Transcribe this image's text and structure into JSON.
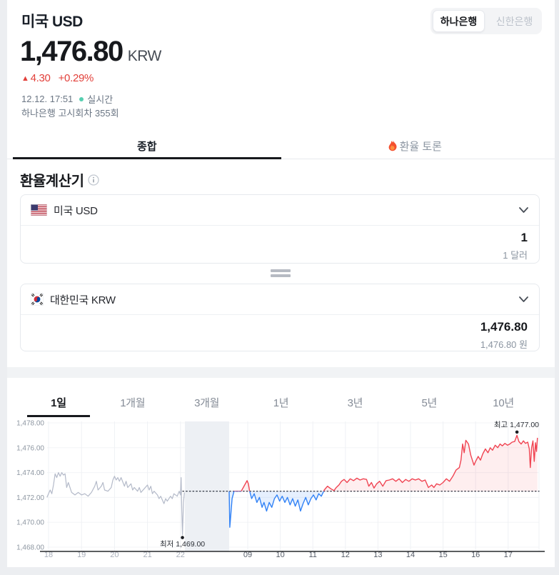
{
  "header": {
    "title": "미국 USD",
    "bank_toggle": {
      "active": "하나은행",
      "inactive": "신한은행"
    },
    "price": "1,476.80",
    "currency_unit": "KRW",
    "change_arrow": "▲",
    "change_value": "4.30",
    "change_percent": "+0.29%",
    "timestamp": "12.12. 17:51",
    "realtime_label": "실시간",
    "notice": "하나은행 고시회차 355회"
  },
  "tabs": {
    "overview": "종합",
    "discussion": "환율 토론"
  },
  "calculator": {
    "heading": "환율계산기",
    "from": {
      "label": "미국 USD",
      "amount": "1",
      "unit_text": "1 달러"
    },
    "to": {
      "label": "대한민국 KRW",
      "amount": "1,476.80",
      "unit_text": "1,476.80 원"
    }
  },
  "chart_tabs": [
    "1일",
    "1개월",
    "3개월",
    "1년",
    "3년",
    "5년",
    "10년"
  ],
  "chart_tabs_active": "1일",
  "chart_data": {
    "type": "line",
    "ylim": [
      1468,
      1478
    ],
    "y_ticks": [
      "1,478.00",
      "1,476.00",
      "1,474.00",
      "1,472.00",
      "1,470.00",
      "1,468.00"
    ],
    "y_tick_values": [
      1478,
      1476,
      1474,
      1472,
      1470,
      1468
    ],
    "x_ticks_prev": {
      "labels": [
        "18",
        "19",
        "20",
        "21",
        "22"
      ],
      "values": [
        18,
        19,
        20,
        21,
        22
      ]
    },
    "x_ticks_today": {
      "labels": [
        "09",
        "10",
        "11",
        "12",
        "13",
        "14",
        "15",
        "16",
        "17"
      ],
      "values": [
        9,
        10,
        11,
        12,
        13,
        14,
        15,
        16,
        17
      ]
    },
    "baseline_value": 1472.5,
    "max_label": "최고 1,477.00",
    "max_point": {
      "t": 17.27,
      "value": 1477
    },
    "min_label": "최저 1,469.00",
    "min_point": {
      "t": 22.06,
      "value": 1469
    },
    "colors": {
      "up": "#f04452",
      "down": "#3182f6",
      "prev": "#b4bac9",
      "up_fill": "rgba(240,68,82,0.09)",
      "down_fill": "rgba(49,130,246,0.12)"
    },
    "series": [
      {
        "name": "previous-session",
        "points": [
          [
            17.95,
            1472.0
          ],
          [
            18.05,
            1472.6
          ],
          [
            18.1,
            1472.3
          ],
          [
            18.15,
            1473.0
          ],
          [
            18.2,
            1473.9
          ],
          [
            18.25,
            1473.6
          ],
          [
            18.3,
            1474.0
          ],
          [
            18.35,
            1473.7
          ],
          [
            18.4,
            1474.0
          ],
          [
            18.45,
            1473.8
          ],
          [
            18.5,
            1473.9
          ],
          [
            18.55,
            1472.8
          ],
          [
            18.6,
            1473.2
          ],
          [
            18.7,
            1472.4
          ],
          [
            18.8,
            1472.2
          ],
          [
            18.9,
            1472.4
          ],
          [
            19.0,
            1472.2
          ],
          [
            19.1,
            1472.3
          ],
          [
            19.2,
            1472.1
          ],
          [
            19.3,
            1472.4
          ],
          [
            19.4,
            1472.9
          ],
          [
            19.45,
            1473.3
          ],
          [
            19.5,
            1472.6
          ],
          [
            19.6,
            1472.9
          ],
          [
            19.65,
            1473.2
          ],
          [
            19.7,
            1472.6
          ],
          [
            19.8,
            1472.5
          ],
          [
            19.9,
            1472.8
          ],
          [
            19.95,
            1473.4
          ],
          [
            20.0,
            1473.7
          ],
          [
            20.05,
            1473.4
          ],
          [
            20.1,
            1473.6
          ],
          [
            20.15,
            1473.3
          ],
          [
            20.2,
            1473.6
          ],
          [
            20.3,
            1472.9
          ],
          [
            20.35,
            1473.3
          ],
          [
            20.4,
            1472.8
          ],
          [
            20.5,
            1473.1
          ],
          [
            20.55,
            1472.6
          ],
          [
            20.6,
            1472.8
          ],
          [
            20.7,
            1472.5
          ],
          [
            20.75,
            1472.8
          ],
          [
            20.8,
            1472.4
          ],
          [
            20.9,
            1472.7
          ],
          [
            21.0,
            1473.0
          ],
          [
            21.05,
            1472.6
          ],
          [
            21.1,
            1472.9
          ],
          [
            21.15,
            1472.3
          ],
          [
            21.2,
            1472.5
          ],
          [
            21.3,
            1472.2
          ],
          [
            21.35,
            1471.9
          ],
          [
            21.4,
            1472.1
          ],
          [
            21.5,
            1471.5
          ],
          [
            21.55,
            1471.9
          ],
          [
            21.6,
            1471.7
          ],
          [
            21.7,
            1472.1
          ],
          [
            21.75,
            1471.9
          ],
          [
            21.8,
            1472.3
          ],
          [
            21.9,
            1472.1
          ],
          [
            21.96,
            1472.5
          ],
          [
            22.0,
            1472.2
          ],
          [
            22.02,
            1473.6
          ],
          [
            22.04,
            1471.0
          ],
          [
            22.06,
            1469.0
          ],
          [
            22.09,
            1471.6
          ],
          [
            22.12,
            1472.4
          ]
        ]
      },
      {
        "name": "today",
        "points": [
          [
            8.43,
            1472.5
          ],
          [
            8.45,
            1469.6
          ],
          [
            8.52,
            1471.9
          ],
          [
            8.58,
            1472.5
          ],
          [
            8.8,
            1472.5
          ],
          [
            8.98,
            1473.35
          ],
          [
            9.02,
            1473.1
          ],
          [
            9.06,
            1472.5
          ],
          [
            9.12,
            1471.9
          ],
          [
            9.2,
            1472.3
          ],
          [
            9.28,
            1471.6
          ],
          [
            9.36,
            1472.0
          ],
          [
            9.44,
            1471.2
          ],
          [
            9.5,
            1471.6
          ],
          [
            9.58,
            1470.9
          ],
          [
            9.66,
            1471.6
          ],
          [
            9.74,
            1471.2
          ],
          [
            9.82,
            1471.9
          ],
          [
            9.9,
            1472.2
          ],
          [
            9.98,
            1471.7
          ],
          [
            10.06,
            1472.1
          ],
          [
            10.14,
            1471.6
          ],
          [
            10.22,
            1472.0
          ],
          [
            10.3,
            1471.4
          ],
          [
            10.38,
            1471.9
          ],
          [
            10.46,
            1471.3
          ],
          [
            10.54,
            1471.8
          ],
          [
            10.62,
            1470.9
          ],
          [
            10.7,
            1471.5
          ],
          [
            10.78,
            1472.0
          ],
          [
            10.86,
            1471.4
          ],
          [
            10.94,
            1471.9
          ],
          [
            11.02,
            1472.2
          ],
          [
            11.1,
            1471.8
          ],
          [
            11.18,
            1472.3
          ],
          [
            11.26,
            1472.1
          ],
          [
            11.35,
            1472.6
          ],
          [
            11.45,
            1472.9
          ],
          [
            11.55,
            1472.7
          ],
          [
            11.65,
            1472.55
          ],
          [
            11.72,
            1472.8
          ],
          [
            11.8,
            1473.0
          ],
          [
            11.88,
            1473.3
          ],
          [
            11.96,
            1473.45
          ],
          [
            12.05,
            1473.2
          ],
          [
            12.15,
            1473.5
          ],
          [
            12.25,
            1473.35
          ],
          [
            12.35,
            1473.55
          ],
          [
            12.45,
            1473.4
          ],
          [
            12.55,
            1473.5
          ],
          [
            12.65,
            1473.45
          ],
          [
            12.72,
            1472.9
          ],
          [
            12.8,
            1473.2
          ],
          [
            12.88,
            1472.75
          ],
          [
            12.96,
            1473.1
          ],
          [
            13.05,
            1473.3
          ],
          [
            13.15,
            1472.9
          ],
          [
            13.25,
            1473.35
          ],
          [
            13.35,
            1473.4
          ],
          [
            13.45,
            1473.5
          ],
          [
            13.55,
            1473.3
          ],
          [
            13.65,
            1473.5
          ],
          [
            13.75,
            1473.2
          ],
          [
            13.85,
            1473.45
          ],
          [
            13.95,
            1473.3
          ],
          [
            14.05,
            1473.5
          ],
          [
            14.15,
            1473.4
          ],
          [
            14.25,
            1473.5
          ],
          [
            14.35,
            1473.3
          ],
          [
            14.45,
            1473.4
          ],
          [
            14.55,
            1472.8
          ],
          [
            14.65,
            1473.0
          ],
          [
            14.72,
            1472.8
          ],
          [
            14.8,
            1473.1
          ],
          [
            14.9,
            1473.0
          ],
          [
            15.0,
            1473.2
          ],
          [
            15.1,
            1473.5
          ],
          [
            15.2,
            1473.3
          ],
          [
            15.3,
            1473.7
          ],
          [
            15.4,
            1474.2
          ],
          [
            15.5,
            1474.4
          ],
          [
            15.55,
            1475.0
          ],
          [
            15.6,
            1476.3
          ],
          [
            15.65,
            1475.6
          ],
          [
            15.7,
            1476.6
          ],
          [
            15.78,
            1476.3
          ],
          [
            15.85,
            1475.4
          ],
          [
            15.95,
            1474.6
          ],
          [
            16.0,
            1474.9
          ],
          [
            16.08,
            1475.3
          ],
          [
            16.15,
            1475.0
          ],
          [
            16.22,
            1475.5
          ],
          [
            16.3,
            1475.9
          ],
          [
            16.38,
            1475.6
          ],
          [
            16.45,
            1476.0
          ],
          [
            16.52,
            1475.8
          ],
          [
            16.6,
            1476.2
          ],
          [
            16.68,
            1476.0
          ],
          [
            16.75,
            1476.3
          ],
          [
            16.82,
            1476.15
          ],
          [
            16.9,
            1476.35
          ],
          [
            16.98,
            1476.2
          ],
          [
            17.05,
            1476.3
          ],
          [
            17.12,
            1476.45
          ],
          [
            17.2,
            1476.5
          ],
          [
            17.27,
            1477.0
          ],
          [
            17.33,
            1476.5
          ],
          [
            17.4,
            1476.3
          ],
          [
            17.47,
            1476.55
          ],
          [
            17.53,
            1476.35
          ],
          [
            17.6,
            1476.45
          ],
          [
            17.65,
            1475.9
          ],
          [
            17.68,
            1474.4
          ],
          [
            17.72,
            1476.0
          ],
          [
            17.76,
            1476.55
          ],
          [
            17.8,
            1474.9
          ],
          [
            17.84,
            1476.4
          ],
          [
            17.87,
            1475.7
          ],
          [
            17.9,
            1476.8
          ]
        ]
      }
    ]
  }
}
